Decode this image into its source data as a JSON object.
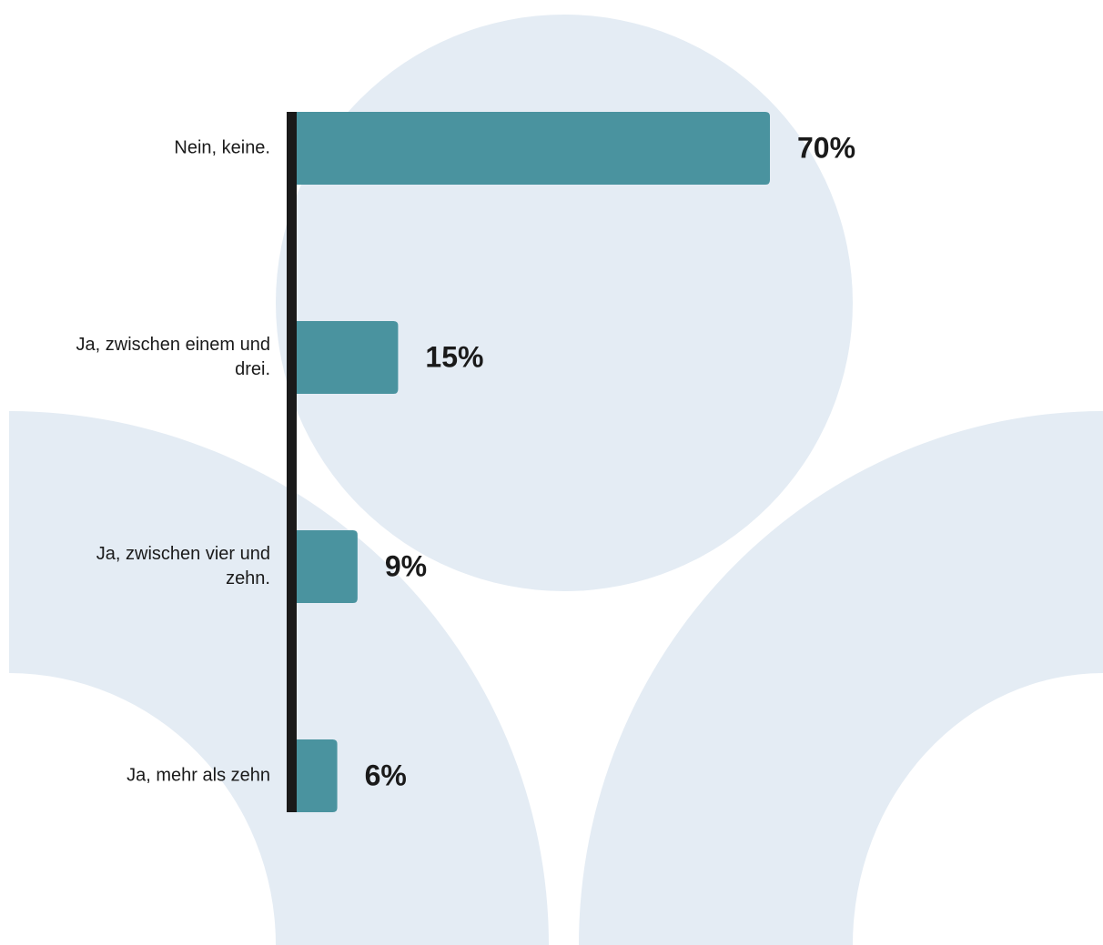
{
  "chart_data": {
    "type": "bar",
    "orientation": "horizontal",
    "categories": [
      "Nein, keine.",
      "Ja, zwischen einem und drei.",
      "Ja, zwischen vier und zehn.",
      "Ja, mehr als zehn"
    ],
    "values": [
      70,
      15,
      9,
      6
    ],
    "value_labels": [
      "70%",
      "15%",
      "9%",
      "6%"
    ],
    "color": "#4a939f"
  }
}
